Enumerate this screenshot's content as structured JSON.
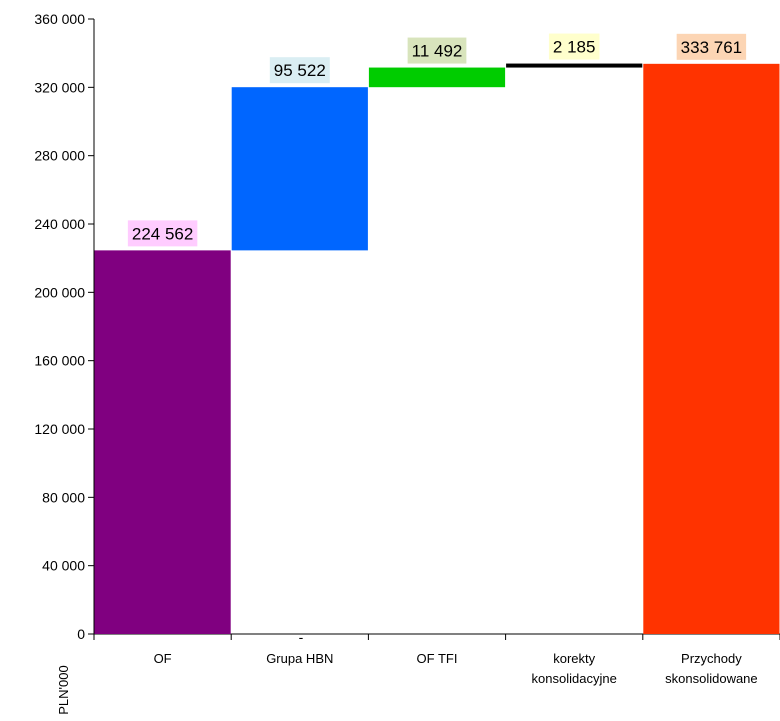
{
  "chart_data": {
    "type": "bar",
    "subtype": "waterfall",
    "ylabel": "PLN'000",
    "ylim": [
      0,
      360000
    ],
    "y_ticks": [
      0,
      40000,
      80000,
      120000,
      160000,
      200000,
      240000,
      280000,
      320000,
      360000
    ],
    "y_tick_labels": [
      "0",
      "40 000",
      "80 000",
      "120 000",
      "160 000",
      "200 000",
      "240 000",
      "280 000",
      "320 000",
      "360 000"
    ],
    "categories": [
      {
        "label_lines": [
          "OF"
        ]
      },
      {
        "label_lines": [
          "Grupa HBN"
        ]
      },
      {
        "label_lines": [
          "OF TFI"
        ]
      },
      {
        "label_lines": [
          "korekty",
          "konsolidacyjne"
        ]
      },
      {
        "label_lines": [
          "Przychody",
          "skonsolidowane"
        ]
      }
    ],
    "bars": [
      {
        "category": "OF",
        "start": 0,
        "end": 224562,
        "value": 224562,
        "label": "224 562",
        "color": "#800080",
        "label_bg": "#ffccff"
      },
      {
        "category": "Grupa HBN",
        "start": 224562,
        "end": 320084,
        "value": 95522,
        "label": "95 522",
        "color": "#0066ff",
        "label_bg": "#daeef3"
      },
      {
        "category": "OF TFI",
        "start": 320084,
        "end": 331576,
        "value": 11492,
        "label": "11 492",
        "color": "#00cc00",
        "label_bg": "#d8e4bc"
      },
      {
        "category": "korekty konsolidacyjne",
        "start": 331576,
        "end": 333761,
        "value": 2185,
        "label": "2 185",
        "color": "#000000",
        "label_bg": "#ffffcc"
      },
      {
        "category": "Przychody skonsolidowane",
        "start": 0,
        "end": 333761,
        "value": 333761,
        "label": "333 761",
        "color": "#ff3300",
        "label_bg": "#fcd5b4"
      }
    ],
    "annotations": [
      {
        "text": "-",
        "near": "Grupa HBN"
      }
    ],
    "grid": false,
    "legend": "none"
  }
}
